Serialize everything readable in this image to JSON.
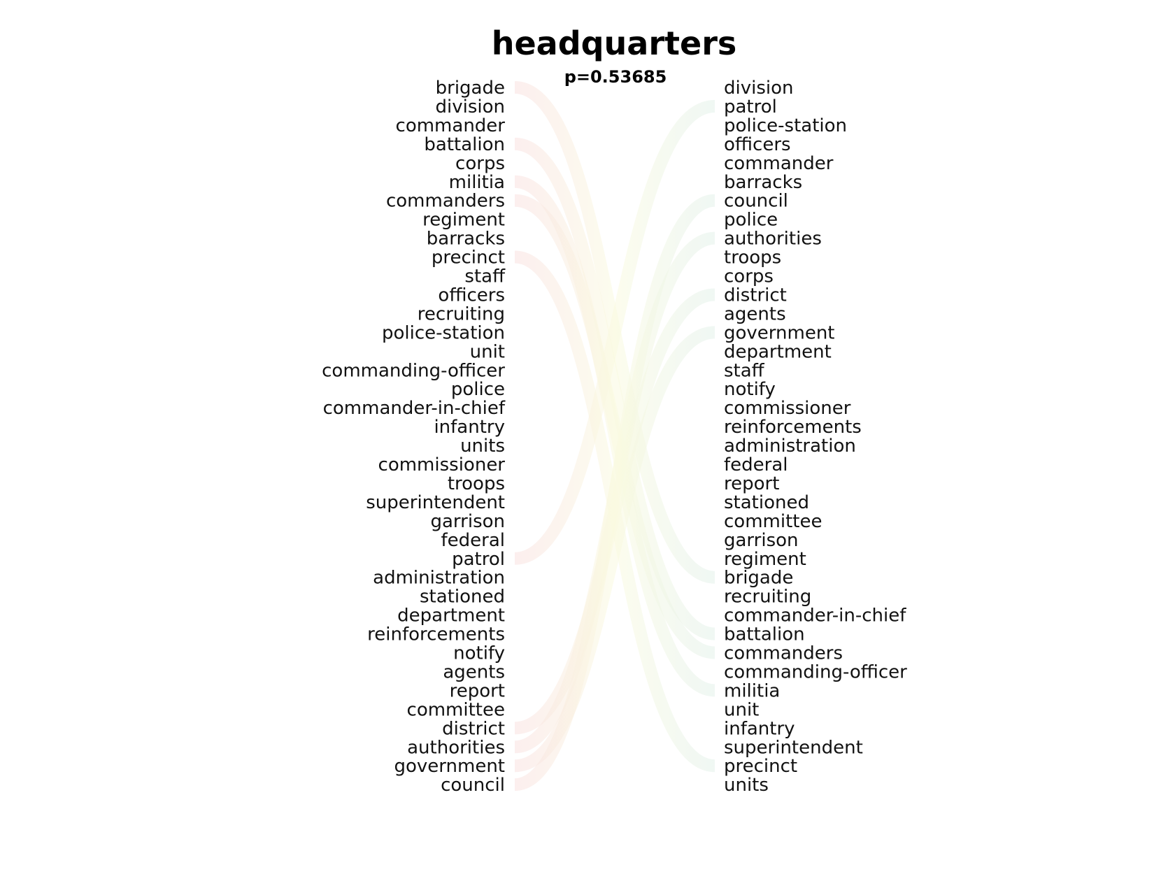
{
  "chart_data": {
    "type": "bump",
    "title": "headquarters",
    "subtitle": "p=0.53685",
    "left_ranking": [
      "brigade",
      "division",
      "commander",
      "battalion",
      "corps",
      "militia",
      "commanders",
      "regiment",
      "barracks",
      "precinct",
      "staff",
      "officers",
      "recruiting",
      "police-station",
      "unit",
      "commanding-officer",
      "police",
      "commander-in-chief",
      "infantry",
      "units",
      "commissioner",
      "troops",
      "superintendent",
      "garrison",
      "federal",
      "patrol",
      "administration",
      "stationed",
      "department",
      "reinforcements",
      "notify",
      "agents",
      "report",
      "committee",
      "district",
      "authorities",
      "government",
      "council"
    ],
    "right_ranking": [
      "division",
      "patrol",
      "police-station",
      "officers",
      "commander",
      "barracks",
      "council",
      "police",
      "authorities",
      "troops",
      "corps",
      "district",
      "agents",
      "government",
      "department",
      "staff",
      "notify",
      "commissioner",
      "reinforcements",
      "administration",
      "federal",
      "report",
      "stationed",
      "committee",
      "garrison",
      "regiment",
      "brigade",
      "recruiting",
      "commander-in-chief",
      "battalion",
      "commanders",
      "commanding-officer",
      "militia",
      "unit",
      "infantry",
      "superintendent",
      "precinct",
      "units"
    ],
    "highlighted_left": [
      "brigade",
      "battalion",
      "militia",
      "commanders",
      "precinct",
      "patrol",
      "district",
      "authorities",
      "government",
      "council"
    ],
    "highlighted_right": [
      "patrol",
      "council",
      "authorities",
      "district",
      "government",
      "brigade",
      "battalion",
      "commanders",
      "militia",
      "precinct"
    ],
    "colors": {
      "start": "#f9e1e1",
      "middle": "#fafae0",
      "end": "#e3f1ea"
    }
  }
}
